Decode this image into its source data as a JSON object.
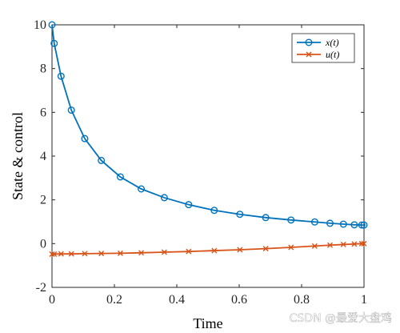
{
  "chart_data": {
    "type": "line",
    "xlabel": "Time",
    "ylabel": "State & control",
    "xlim": [
      0,
      1
    ],
    "ylim": [
      -2,
      10
    ],
    "xticks": [
      0,
      0.2,
      0.4,
      0.6,
      0.8,
      1
    ],
    "xtick_labels": [
      "0",
      "0.2",
      "0.4",
      "0.6",
      "0.8",
      "1"
    ],
    "yticks": [
      -2,
      0,
      2,
      4,
      6,
      8,
      10
    ],
    "ytick_labels": [
      "-2",
      "0",
      "2",
      "4",
      "6",
      "8",
      "10"
    ],
    "grid": false,
    "legend_position": "top-right",
    "series": [
      {
        "name": "x(t)",
        "color": "#0072BD",
        "marker": "circle",
        "x": [
          0,
          0.007,
          0.029,
          0.062,
          0.105,
          0.158,
          0.219,
          0.286,
          0.36,
          0.438,
          0.52,
          0.602,
          0.685,
          0.766,
          0.842,
          0.891,
          0.934,
          0.969,
          0.993,
          1.0
        ],
        "y": [
          10,
          9.15,
          7.65,
          6.1,
          4.8,
          3.8,
          3.05,
          2.5,
          2.1,
          1.78,
          1.52,
          1.34,
          1.19,
          1.08,
          0.99,
          0.93,
          0.89,
          0.86,
          0.85,
          0.85
        ]
      },
      {
        "name": "u(t)",
        "color": "#D95319",
        "marker": "x",
        "x": [
          0,
          0.007,
          0.029,
          0.062,
          0.105,
          0.158,
          0.219,
          0.286,
          0.36,
          0.438,
          0.52,
          0.602,
          0.685,
          0.766,
          0.842,
          0.891,
          0.934,
          0.969,
          0.993,
          1.0
        ],
        "y": [
          -0.48,
          -0.48,
          -0.47,
          -0.47,
          -0.46,
          -0.45,
          -0.44,
          -0.42,
          -0.39,
          -0.36,
          -0.32,
          -0.28,
          -0.23,
          -0.17,
          -0.11,
          -0.07,
          -0.04,
          -0.02,
          0,
          0
        ]
      }
    ],
    "legend_labels": [
      "x(t)",
      "u(t)"
    ]
  },
  "watermark": "CSDN @最爱大盘鸡"
}
